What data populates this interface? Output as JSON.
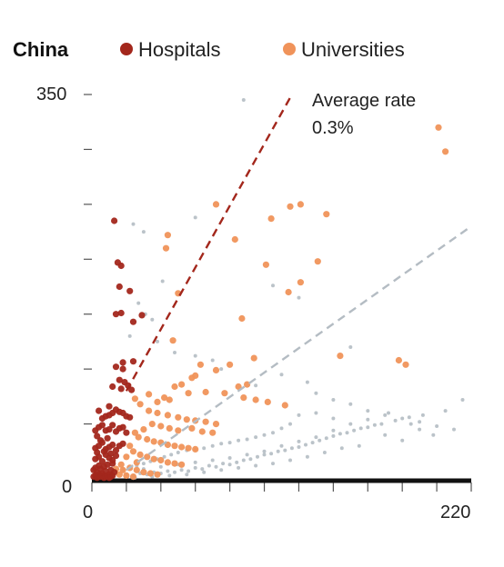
{
  "chart_data": {
    "type": "scatter",
    "legend": {
      "title": "China",
      "placement": "top-left",
      "entries": [
        {
          "label": "Hospitals",
          "color": "#a3271c"
        },
        {
          "label": "Universities",
          "color": "#f0935a"
        }
      ]
    },
    "axes": {
      "x": {
        "min": 0,
        "max": 220,
        "tick_labels": [
          "0",
          "220"
        ],
        "ticks": [
          0,
          20,
          40,
          60,
          80,
          100,
          120,
          140,
          160,
          180,
          200,
          220
        ]
      },
      "y": {
        "min": 0,
        "max": 350,
        "tick_labels": [
          "0",
          "350"
        ],
        "ticks": [
          0,
          50,
          100,
          150,
          200,
          250,
          300,
          350
        ]
      }
    },
    "grid": false,
    "annotation": {
      "line1": "Average rate",
      "line2": "0.3%"
    },
    "trend_lines": [
      {
        "series": "Hospitals",
        "color": "#a3271c",
        "style": "dashed",
        "from": [
          20,
          80
        ],
        "to": [
          116,
          350
        ]
      },
      {
        "series": "Other",
        "color": "#b4bcc3",
        "style": "dashed",
        "from": [
          20,
          8
        ],
        "to": [
          220,
          230
        ]
      }
    ],
    "series": [
      {
        "name": "Hospitals",
        "color": "#a3271c",
        "points": [
          [
            13,
            235
          ],
          [
            15,
            197
          ],
          [
            17,
            194
          ],
          [
            16,
            175
          ],
          [
            14,
            150
          ],
          [
            17,
            151
          ],
          [
            29,
            149
          ],
          [
            22,
            171
          ],
          [
            24,
            143
          ],
          [
            14,
            102
          ],
          [
            18,
            106
          ],
          [
            24,
            107
          ],
          [
            18,
            100
          ],
          [
            16,
            90
          ],
          [
            19,
            88
          ],
          [
            21,
            85
          ],
          [
            12,
            84
          ],
          [
            17,
            82
          ],
          [
            23,
            81
          ],
          [
            4,
            62
          ],
          [
            6,
            55
          ],
          [
            8,
            57
          ],
          [
            10,
            58
          ],
          [
            12,
            60
          ],
          [
            14,
            63
          ],
          [
            16,
            61
          ],
          [
            18,
            60
          ],
          [
            20,
            57
          ],
          [
            22,
            56
          ],
          [
            10,
            66
          ],
          [
            2,
            44
          ],
          [
            4,
            47
          ],
          [
            6,
            49
          ],
          [
            8,
            44
          ],
          [
            10,
            45
          ],
          [
            12,
            49
          ],
          [
            14,
            43
          ],
          [
            16,
            46
          ],
          [
            18,
            47
          ],
          [
            20,
            42
          ],
          [
            3,
            39
          ],
          [
            2,
            28
          ],
          [
            4,
            30
          ],
          [
            6,
            33
          ],
          [
            8,
            27
          ],
          [
            10,
            29
          ],
          [
            12,
            31
          ],
          [
            14,
            26
          ],
          [
            16,
            30
          ],
          [
            18,
            32
          ],
          [
            5,
            35
          ],
          [
            9,
            37
          ],
          [
            2,
            18
          ],
          [
            4,
            20
          ],
          [
            6,
            16
          ],
          [
            8,
            22
          ],
          [
            10,
            19
          ],
          [
            12,
            17
          ],
          [
            14,
            21
          ],
          [
            3,
            24
          ],
          [
            7,
            25
          ],
          [
            11,
            23
          ],
          [
            1,
            8
          ],
          [
            2,
            10
          ],
          [
            3,
            6
          ],
          [
            4,
            12
          ],
          [
            5,
            9
          ],
          [
            6,
            5
          ],
          [
            7,
            11
          ],
          [
            8,
            7
          ],
          [
            9,
            13
          ],
          [
            10,
            4
          ],
          [
            11,
            8
          ],
          [
            12,
            14
          ],
          [
            13,
            6
          ],
          [
            1,
            2
          ],
          [
            2,
            3
          ],
          [
            3,
            1
          ],
          [
            4,
            4
          ],
          [
            5,
            2
          ],
          [
            6,
            3
          ],
          [
            7,
            1
          ],
          [
            8,
            2
          ],
          [
            9,
            3
          ],
          [
            10,
            1
          ],
          [
            11,
            2
          ],
          [
            12,
            3
          ]
        ]
      },
      {
        "name": "Universities",
        "color": "#f0935a",
        "points": [
          [
            201,
            320
          ],
          [
            205,
            298
          ],
          [
            72,
            250
          ],
          [
            121,
            250
          ],
          [
            115,
            248
          ],
          [
            136,
            241
          ],
          [
            104,
            237
          ],
          [
            44,
            222
          ],
          [
            83,
            218
          ],
          [
            43,
            210
          ],
          [
            101,
            195
          ],
          [
            131,
            198
          ],
          [
            121,
            179
          ],
          [
            114,
            170
          ],
          [
            50,
            169
          ],
          [
            87,
            146
          ],
          [
            47,
            126
          ],
          [
            144,
            112
          ],
          [
            178,
            108
          ],
          [
            94,
            110
          ],
          [
            182,
            104
          ],
          [
            80,
            104
          ],
          [
            72,
            99
          ],
          [
            63,
            104
          ],
          [
            60,
            94
          ],
          [
            58,
            92
          ],
          [
            90,
            86
          ],
          [
            52,
            86
          ],
          [
            48,
            84
          ],
          [
            33,
            77
          ],
          [
            56,
            78
          ],
          [
            85,
            84
          ],
          [
            66,
            79
          ],
          [
            77,
            78
          ],
          [
            88,
            74
          ],
          [
            95,
            72
          ],
          [
            112,
            67
          ],
          [
            102,
            70
          ],
          [
            45,
            72
          ],
          [
            42,
            74
          ],
          [
            38,
            70
          ],
          [
            25,
            73
          ],
          [
            28,
            68
          ],
          [
            33,
            62
          ],
          [
            38,
            60
          ],
          [
            44,
            58
          ],
          [
            50,
            56
          ],
          [
            55,
            54
          ],
          [
            60,
            53
          ],
          [
            66,
            52
          ],
          [
            72,
            50
          ],
          [
            35,
            50
          ],
          [
            40,
            48
          ],
          [
            45,
            46
          ],
          [
            50,
            44
          ],
          [
            58,
            46
          ],
          [
            64,
            43
          ],
          [
            70,
            42
          ],
          [
            30,
            45
          ],
          [
            25,
            42
          ],
          [
            27,
            38
          ],
          [
            32,
            36
          ],
          [
            36,
            34
          ],
          [
            40,
            33
          ],
          [
            44,
            31
          ],
          [
            48,
            30
          ],
          [
            52,
            29
          ],
          [
            56,
            28
          ],
          [
            60,
            27
          ],
          [
            22,
            30
          ],
          [
            24,
            25
          ],
          [
            28,
            22
          ],
          [
            32,
            20
          ],
          [
            36,
            18
          ],
          [
            40,
            17
          ],
          [
            44,
            15
          ],
          [
            48,
            14
          ],
          [
            52,
            13
          ],
          [
            20,
            20
          ],
          [
            26,
            15
          ],
          [
            22,
            10
          ],
          [
            26,
            8
          ],
          [
            30,
            6
          ],
          [
            34,
            5
          ],
          [
            38,
            4
          ],
          [
            18,
            8
          ],
          [
            16,
            4
          ],
          [
            20,
            3
          ],
          [
            24,
            2
          ],
          [
            14,
            9
          ],
          [
            17,
            13
          ]
        ]
      },
      {
        "name": "Other",
        "color": "#b4bcc3",
        "points": [
          [
            88,
            345
          ],
          [
            24,
            232
          ],
          [
            60,
            238
          ],
          [
            30,
            225
          ],
          [
            41,
            180
          ],
          [
            105,
            176
          ],
          [
            120,
            165
          ],
          [
            150,
            120
          ],
          [
            27,
            160
          ],
          [
            31,
            150
          ],
          [
            35,
            145
          ],
          [
            22,
            130
          ],
          [
            38,
            125
          ],
          [
            48,
            115
          ],
          [
            60,
            112
          ],
          [
            70,
            108
          ],
          [
            75,
            100
          ],
          [
            110,
            95
          ],
          [
            125,
            88
          ],
          [
            95,
            85
          ],
          [
            130,
            78
          ],
          [
            140,
            72
          ],
          [
            150,
            68
          ],
          [
            160,
            62
          ],
          [
            170,
            58
          ],
          [
            180,
            55
          ],
          [
            190,
            52
          ],
          [
            200,
            48
          ],
          [
            210,
            45
          ],
          [
            215,
            72
          ],
          [
            172,
            60
          ],
          [
            185,
            50
          ],
          [
            140,
            55
          ],
          [
            130,
            60
          ],
          [
            120,
            58
          ],
          [
            115,
            50
          ],
          [
            110,
            46
          ],
          [
            105,
            42
          ],
          [
            100,
            40
          ],
          [
            95,
            38
          ],
          [
            90,
            36
          ],
          [
            85,
            35
          ],
          [
            80,
            33
          ],
          [
            75,
            32
          ],
          [
            70,
            30
          ],
          [
            65,
            28
          ],
          [
            60,
            27
          ],
          [
            55,
            26
          ],
          [
            50,
            24
          ],
          [
            46,
            22
          ],
          [
            42,
            20
          ],
          [
            38,
            18
          ],
          [
            34,
            16
          ],
          [
            30,
            14
          ],
          [
            26,
            12
          ],
          [
            22,
            10
          ],
          [
            18,
            8
          ],
          [
            20,
            4
          ],
          [
            24,
            3
          ],
          [
            28,
            5
          ],
          [
            32,
            4
          ],
          [
            36,
            6
          ],
          [
            40,
            5
          ],
          [
            44,
            7
          ],
          [
            48,
            6
          ],
          [
            52,
            8
          ],
          [
            56,
            7
          ],
          [
            60,
            10
          ],
          [
            64,
            9
          ],
          [
            68,
            12
          ],
          [
            72,
            11
          ],
          [
            76,
            14
          ],
          [
            80,
            13
          ],
          [
            84,
            15
          ],
          [
            88,
            17
          ],
          [
            92,
            18
          ],
          [
            96,
            20
          ],
          [
            100,
            22
          ],
          [
            104,
            23
          ],
          [
            108,
            25
          ],
          [
            112,
            26
          ],
          [
            116,
            28
          ],
          [
            120,
            29
          ],
          [
            124,
            31
          ],
          [
            128,
            33
          ],
          [
            132,
            35
          ],
          [
            136,
            37
          ],
          [
            140,
            39
          ],
          [
            144,
            41
          ],
          [
            148,
            42
          ],
          [
            152,
            44
          ],
          [
            156,
            46
          ],
          [
            160,
            47
          ],
          [
            164,
            49
          ],
          [
            168,
            50
          ],
          [
            176,
            53
          ],
          [
            184,
            56
          ],
          [
            192,
            58
          ],
          [
            198,
            40
          ],
          [
            205,
            62
          ],
          [
            155,
            30
          ],
          [
            145,
            28
          ],
          [
            135,
            24
          ],
          [
            125,
            20
          ],
          [
            115,
            17
          ],
          [
            105,
            14
          ],
          [
            95,
            12
          ],
          [
            85,
            10
          ],
          [
            75,
            8
          ],
          [
            65,
            6
          ],
          [
            55,
            4
          ],
          [
            45,
            3
          ],
          [
            35,
            2
          ],
          [
            25,
            1
          ],
          [
            30,
            9
          ],
          [
            40,
            11
          ],
          [
            50,
            13
          ],
          [
            60,
            15
          ],
          [
            70,
            17
          ],
          [
            80,
            19
          ],
          [
            90,
            22
          ],
          [
            100,
            25
          ],
          [
            110,
            30
          ],
          [
            120,
            34
          ],
          [
            130,
            38
          ],
          [
            140,
            44
          ],
          [
            150,
            50
          ],
          [
            160,
            54
          ],
          [
            170,
            40
          ],
          [
            180,
            35
          ],
          [
            190,
            45
          ]
        ]
      }
    ]
  }
}
